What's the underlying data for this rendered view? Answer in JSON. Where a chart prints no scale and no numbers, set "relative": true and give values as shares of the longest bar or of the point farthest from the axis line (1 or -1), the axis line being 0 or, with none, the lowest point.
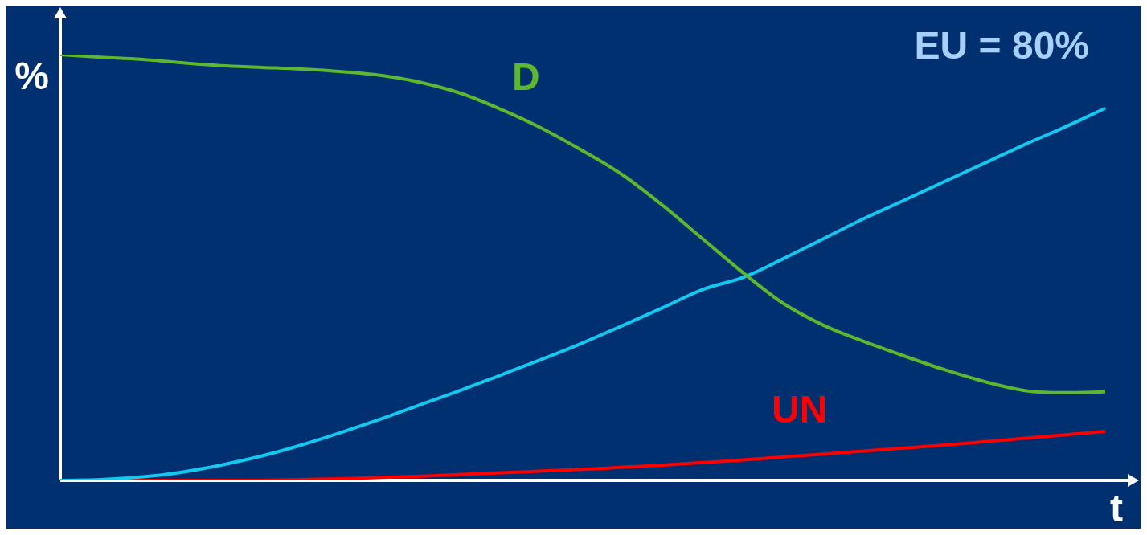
{
  "chart_data": {
    "type": "line",
    "relative": true,
    "xlabel": "t",
    "ylabel": "%",
    "annotations": [
      "EU = 80%"
    ],
    "marker": "none",
    "categories": [
      null,
      null,
      null,
      null,
      null,
      null,
      null,
      null,
      null,
      null,
      null,
      null,
      null,
      null,
      null,
      null,
      null,
      null,
      null,
      null,
      null,
      null,
      null,
      null,
      null,
      null,
      null
    ],
    "series": [
      {
        "name": "D",
        "color": "#5cb82e",
        "values": [
          1.0,
          0.994,
          0.989,
          0.981,
          0.974,
          0.97,
          0.966,
          0.96,
          0.951,
          0.934,
          0.908,
          0.87,
          0.826,
          0.774,
          0.717,
          0.645,
          0.566,
          0.487,
          0.415,
          0.364,
          0.326,
          0.292,
          0.26,
          0.232,
          0.211,
          0.206,
          0.208
        ]
      },
      {
        "color": "#14c8f0",
        "values": [
          0.0,
          0.002,
          0.008,
          0.019,
          0.036,
          0.057,
          0.083,
          0.113,
          0.145,
          0.179,
          0.213,
          0.249,
          0.285,
          0.323,
          0.364,
          0.406,
          0.449,
          0.477,
          0.521,
          0.568,
          0.615,
          0.658,
          0.702,
          0.745,
          0.789,
          0.83,
          0.874
        ]
      },
      {
        "name": "UN",
        "color": "#ff0000",
        "values": [
          0.0,
          0.0,
          0.0,
          0.0,
          0.0,
          0.0,
          0.002,
          0.004,
          0.007,
          0.01,
          0.014,
          0.018,
          0.022,
          0.026,
          0.031,
          0.036,
          0.042,
          0.048,
          0.055,
          0.062,
          0.069,
          0.076,
          0.083,
          0.091,
          0.099,
          0.107,
          0.115
        ]
      }
    ]
  }
}
